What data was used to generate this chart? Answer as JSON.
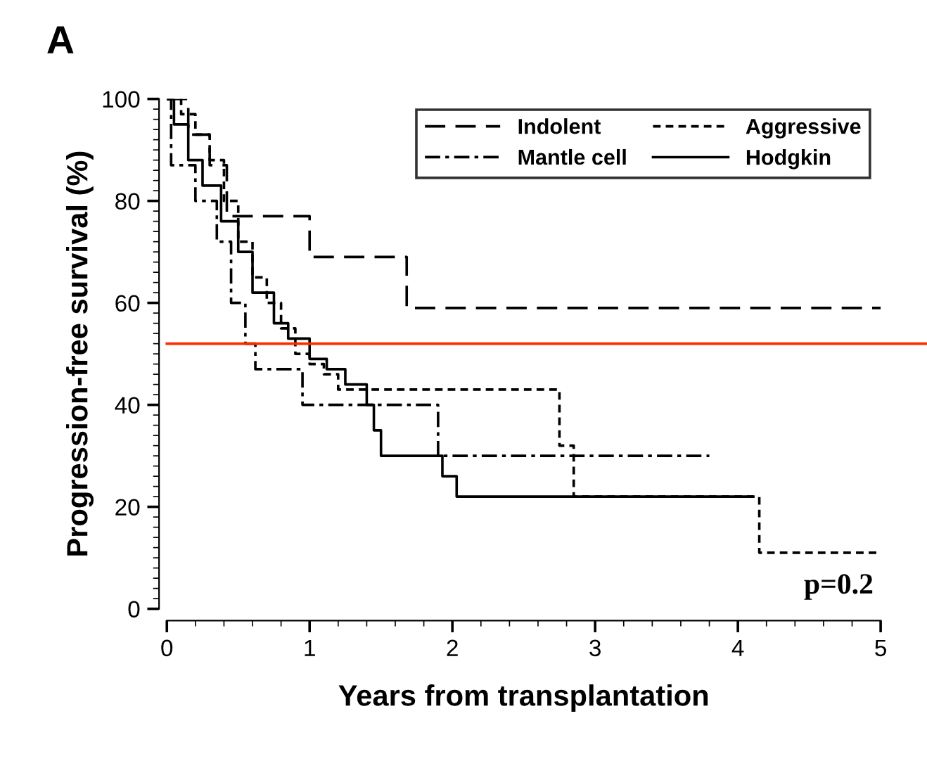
{
  "chart_data": {
    "type": "step",
    "xlabel": "Years from transplantation",
    "ylabel": "Progression-free survival (%)",
    "xlim": [
      0,
      5
    ],
    "xticks": [
      0,
      1,
      2,
      3,
      4,
      5
    ],
    "ylim": [
      0,
      100
    ],
    "yticks": [
      0,
      20,
      40,
      60,
      80,
      100
    ],
    "series": [
      {
        "name": "Indolent",
        "color": "#000000",
        "line_style": "dashed",
        "x": [
          0,
          0.15,
          0.3,
          0.42,
          1.0,
          1.68,
          5
        ],
        "values": [
          100,
          93,
          87,
          77,
          69,
          59,
          59
        ]
      },
      {
        "name": "Aggressive",
        "color": "#000000",
        "line_style": "dotted",
        "x": [
          0,
          0.1,
          0.2,
          0.3,
          0.4,
          0.5,
          0.6,
          0.7,
          0.8,
          0.9,
          1.0,
          1.1,
          1.2,
          2.75,
          2.85,
          4.15,
          5
        ],
        "values": [
          100,
          97,
          93,
          88,
          80,
          72,
          65,
          60,
          55,
          50,
          48,
          46,
          43,
          32,
          22,
          11,
          11
        ]
      },
      {
        "name": "Mantle cell",
        "color": "#000000",
        "line_style": "dashdot",
        "x": [
          0,
          0.03,
          0.2,
          0.35,
          0.45,
          0.55,
          0.62,
          0.95,
          1.9,
          3.8
        ],
        "values": [
          100,
          87,
          80,
          72,
          60,
          52,
          47,
          40,
          30,
          30
        ]
      },
      {
        "name": "Hodgkin",
        "color": "#000000",
        "line_style": "solid",
        "x": [
          0,
          0.05,
          0.15,
          0.25,
          0.38,
          0.5,
          0.6,
          0.75,
          0.85,
          1.0,
          1.12,
          1.25,
          1.4,
          1.45,
          1.5,
          1.93,
          2.03,
          4.1
        ],
        "values": [
          100,
          95,
          88,
          83,
          76,
          70,
          62,
          56,
          53,
          49,
          47,
          44,
          40,
          35,
          30,
          26,
          22,
          22
        ]
      }
    ],
    "ref_lines": [
      {
        "axis": "y",
        "value": 52,
        "color": "#ff2a00"
      }
    ],
    "annotations": [
      "A",
      "p=0.2"
    ],
    "legend": "top right",
    "grid": false
  }
}
